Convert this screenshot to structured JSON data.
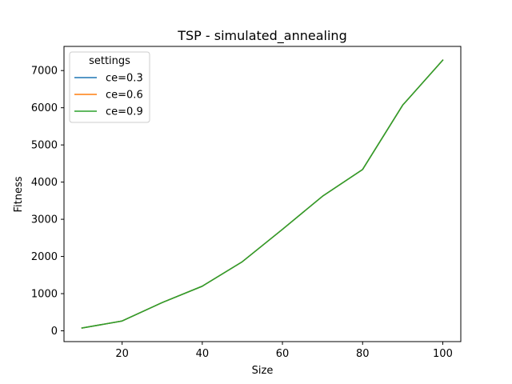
{
  "chart_data": {
    "type": "line",
    "title": "TSP - simulated_annealing",
    "xlabel": "Size",
    "ylabel": "Fitness",
    "xlim": [
      5.5,
      104.5
    ],
    "ylim": [
      -290,
      7650
    ],
    "xticks": [
      20,
      40,
      60,
      80,
      100
    ],
    "yticks": [
      0,
      1000,
      2000,
      3000,
      4000,
      5000,
      6000,
      7000
    ],
    "grid": false,
    "legend": {
      "title": "settings",
      "placement": "upper-left"
    },
    "x": [
      10,
      20,
      30,
      40,
      50,
      60,
      70,
      80,
      90,
      100
    ],
    "series": [
      {
        "name": "ce=0.3",
        "color": "#1f77b4",
        "values": [
          75,
          265,
          760,
          1200,
          1860,
          2730,
          3620,
          4340,
          6070,
          7280
        ]
      },
      {
        "name": "ce=0.6",
        "color": "#ff7f0e",
        "values": [
          75,
          265,
          760,
          1200,
          1860,
          2730,
          3620,
          4340,
          6070,
          7280
        ]
      },
      {
        "name": "ce=0.9",
        "color": "#2ca02c",
        "values": [
          75,
          265,
          760,
          1200,
          1860,
          2730,
          3620,
          4340,
          6070,
          7280
        ]
      }
    ]
  }
}
